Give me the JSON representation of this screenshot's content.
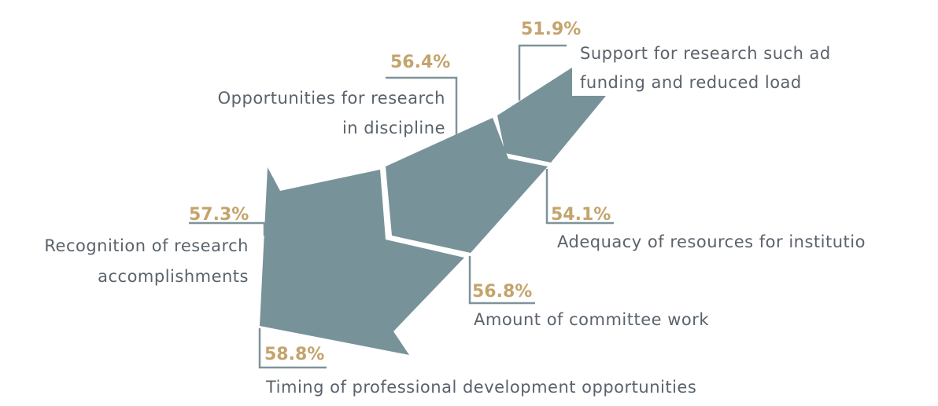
{
  "items": [
    {
      "percent": "51.9%",
      "label": [
        "Support for research such ad",
        "funding and reduced load"
      ]
    },
    {
      "percent": "56.4%",
      "label": [
        "Opportunities for research",
        "in discipline"
      ]
    },
    {
      "percent": "57.3%",
      "label": [
        "Recognition of research",
        "accomplishments"
      ]
    },
    {
      "percent": "54.1%",
      "label": [
        "Adequacy of resources for institutio"
      ]
    },
    {
      "percent": "56.8%",
      "label": [
        "Amount of committee work"
      ]
    },
    {
      "percent": "58.8%",
      "label": [
        "Timing of professional development opportunities"
      ]
    }
  ]
}
